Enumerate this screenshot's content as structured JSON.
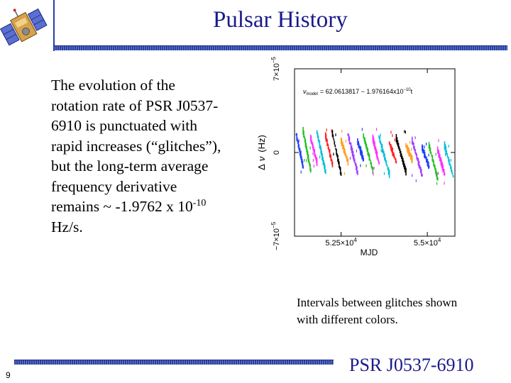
{
  "slide": {
    "title": "Pulsar History",
    "body_lines": [
      "The evolution of the",
      "rotation rate of PSR J0537-",
      "6910 is punctuated with",
      "rapid increases (“glitches”),",
      "but the long-term average",
      "frequency derivative"
    ],
    "body_value_prefix": "remains ~ -1.9762 x 10",
    "body_value_exponent": "-10",
    "body_units": "Hz/s.",
    "caption_line1": "Intervals between glitches shown",
    "caption_line2": "with different colors.",
    "footer_label": "PSR J0537-6910",
    "slide_number": "9",
    "logo_icon": "satellite-icon"
  },
  "chart_data": {
    "type": "scatter",
    "title": "",
    "annotation": "ν_model = 62.0613817 - 1.976164x10^-10 t",
    "annotation_lhs": "ν",
    "annotation_sub": "model",
    "annotation_rhs": "= 62.0613817 − 1.976164x10",
    "annotation_exp": "−10",
    "annotation_tail": "t",
    "xlabel": "MJD",
    "ylabel": "Δ ν  (Hz)",
    "ylabel_delta": "Δ",
    "ylabel_nu": "ν",
    "ylabel_unit": "(Hz)",
    "xlim": [
      51150,
      55800
    ],
    "ylim": [
      -7e-05,
      7e-05
    ],
    "x_tick_labels": [
      {
        "value": 52500,
        "mantissa": "5.25×10",
        "exp": "4"
      },
      {
        "value": 55000,
        "mantissa": "5.5×10",
        "exp": "4"
      }
    ],
    "y_tick_labels": [
      {
        "value": 7e-05,
        "mantissa": "7×10",
        "exp": "−5"
      },
      {
        "value": 0,
        "mantissa": "0",
        "exp": ""
      },
      {
        "value": -7e-05,
        "mantissa": "−7×10",
        "exp": "−5"
      }
    ],
    "series_colors": [
      "#2040ff",
      "#20c020",
      "#ff30ff",
      "#00bfd8",
      "#ff2020",
      "#000000",
      "#ffa020",
      "#a040ff"
    ],
    "intervals": [
      {
        "start": 51200,
        "end": 51400,
        "y_start": 1.5e-05,
        "y_end": -1.2e-05
      },
      {
        "start": 51400,
        "end": 51620,
        "y_start": 1.8e-05,
        "y_end": -1.5e-05
      },
      {
        "start": 51620,
        "end": 51800,
        "y_start": 1.2e-05,
        "y_end": -8e-06
      },
      {
        "start": 51800,
        "end": 52050,
        "y_start": 1.7e-05,
        "y_end": -1.6e-05
      },
      {
        "start": 52050,
        "end": 52250,
        "y_start": 1.4e-05,
        "y_end": -1e-05
      },
      {
        "start": 52250,
        "end": 52500,
        "y_start": 1.6e-05,
        "y_end": -1.8e-05
      },
      {
        "start": 52500,
        "end": 52700,
        "y_start": 1e-05,
        "y_end": -8e-06
      },
      {
        "start": 52700,
        "end": 52980,
        "y_start": 1.5e-05,
        "y_end": -1.7e-05
      },
      {
        "start": 52980,
        "end": 53150,
        "y_start": 9e-06,
        "y_end": -6e-06
      },
      {
        "start": 53150,
        "end": 53420,
        "y_start": 1.4e-05,
        "y_end": -1.5e-05
      },
      {
        "start": 53420,
        "end": 53600,
        "y_start": 1.2e-05,
        "y_end": -9e-06
      },
      {
        "start": 53600,
        "end": 53900,
        "y_start": 1.3e-05,
        "y_end": -1.8e-05
      },
      {
        "start": 53900,
        "end": 54100,
        "y_start": 8e-06,
        "y_end": -8e-06
      },
      {
        "start": 54100,
        "end": 54380,
        "y_start": 1.2e-05,
        "y_end": -1.6e-05
      },
      {
        "start": 54380,
        "end": 54560,
        "y_start": 6e-06,
        "y_end": -6e-06
      },
      {
        "start": 54560,
        "end": 54850,
        "y_start": 1e-05,
        "y_end": -1.9e-05
      },
      {
        "start": 54850,
        "end": 55050,
        "y_start": 4e-06,
        "y_end": -1.2e-05
      },
      {
        "start": 55050,
        "end": 55300,
        "y_start": 6e-06,
        "y_end": -2.2e-05
      },
      {
        "start": 55300,
        "end": 55500,
        "y_start": 2e-06,
        "y_end": -1.8e-05
      },
      {
        "start": 55500,
        "end": 55750,
        "y_start": 6e-06,
        "y_end": -2e-05
      }
    ]
  }
}
